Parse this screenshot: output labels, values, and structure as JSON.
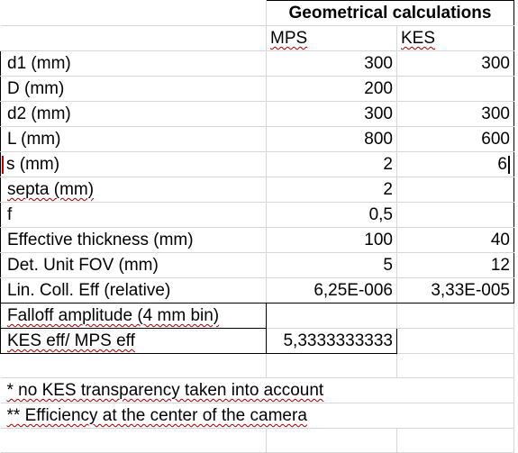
{
  "header": {
    "title": "Geometrical calculations",
    "columns": [
      "MPS",
      "KES"
    ]
  },
  "rows": [
    {
      "label": "d1 (mm)",
      "mps": "300",
      "kes": "300"
    },
    {
      "label": "D (mm)",
      "mps": "200",
      "kes": ""
    },
    {
      "label": "d2 (mm)",
      "mps": "300",
      "kes": "300"
    },
    {
      "label": "L (mm)",
      "mps": "800",
      "kes": "600"
    },
    {
      "label": "s (mm)",
      "mps": "2",
      "kes": "6"
    },
    {
      "label": "septa (mm)",
      "mps": "2",
      "kes": ""
    },
    {
      "label": "f",
      "mps": "0,5",
      "kes": ""
    },
    {
      "label": "Effective thickness (mm)",
      "mps": "100",
      "kes": "40"
    },
    {
      "label": "Det. Unit FOV (mm)",
      "mps": "5",
      "kes": "12"
    },
    {
      "label": "Lin. Coll. Eff (relative)",
      "mps": "6,25E-006",
      "kes": "3,33E-005"
    },
    {
      "label": "Falloff amplitude (4 mm bin)",
      "mps": "",
      "kes": ""
    },
    {
      "label": "KES eff/ MPS eff",
      "mps": "5,3333333333",
      "kes": ""
    }
  ],
  "notes": [
    "* no KES transparency taken into account",
    "** Efficiency at the center of the camera"
  ]
}
